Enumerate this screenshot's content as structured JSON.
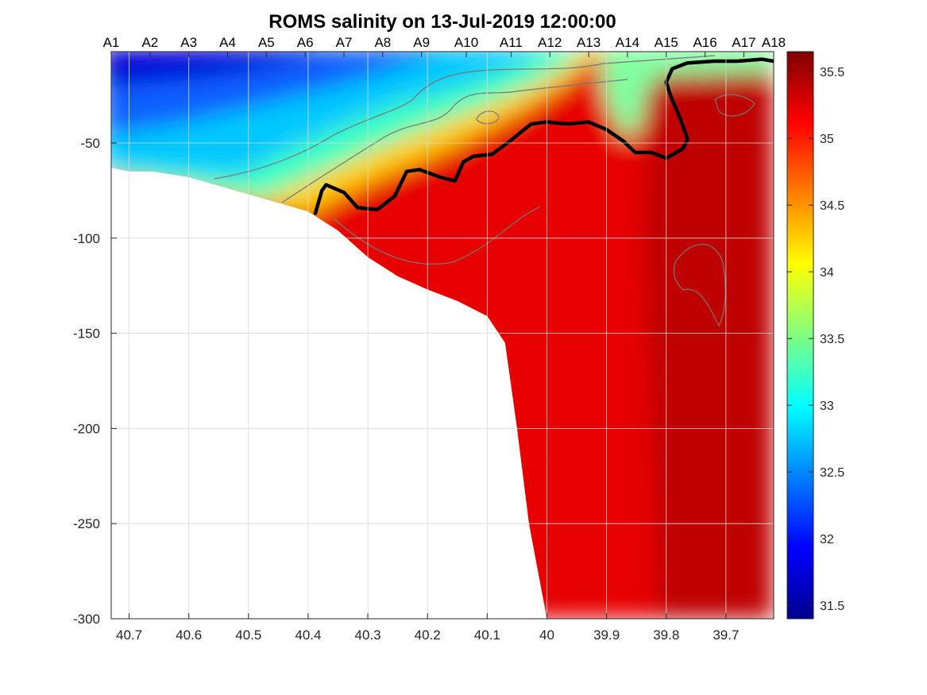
{
  "chart_data": {
    "type": "heatmap",
    "title": "ROMS salinity on 13-Jul-2019 12:00:00",
    "xlabel": "",
    "ylabel": "",
    "x_reversed": true,
    "xlim": [
      40.73,
      39.62
    ],
    "ylim": [
      -300,
      -2
    ],
    "x_ticks": [
      40.7,
      40.6,
      40.5,
      40.4,
      40.3,
      40.2,
      40.1,
      40,
      39.9,
      39.8,
      39.7
    ],
    "x_tick_labels": [
      "40.7",
      "40.6",
      "40.5",
      "40.4",
      "40.3",
      "40.2",
      "40.1",
      "40",
      "39.9",
      "39.8",
      "39.7"
    ],
    "y_ticks": [
      -50,
      -100,
      -150,
      -200,
      -250,
      -300
    ],
    "y_tick_labels": [
      "-50",
      "-100",
      "-150",
      "-200",
      "-250",
      "-300"
    ],
    "grid": true,
    "colormap": "jet",
    "clim": [
      31.4,
      35.65
    ],
    "colorbar_ticks": [
      31.5,
      32,
      32.5,
      33,
      33.5,
      34,
      34.5,
      35,
      35.5
    ],
    "colorbar_tick_labels": [
      "31.5",
      "32",
      "32.5",
      "33",
      "33.5",
      "34",
      "34.5",
      "35",
      "35.5"
    ],
    "stations": [
      {
        "name": "A1",
        "lat": 40.73
      },
      {
        "name": "A2",
        "lat": 40.665
      },
      {
        "name": "A3",
        "lat": 40.6
      },
      {
        "name": "A4",
        "lat": 40.535
      },
      {
        "name": "A5",
        "lat": 40.47
      },
      {
        "name": "A6",
        "lat": 40.405
      },
      {
        "name": "A7",
        "lat": 40.34
      },
      {
        "name": "A8",
        "lat": 40.275
      },
      {
        "name": "A9",
        "lat": 40.21
      },
      {
        "name": "A10",
        "lat": 40.135
      },
      {
        "name": "A11",
        "lat": 40.06
      },
      {
        "name": "A12",
        "lat": 39.995
      },
      {
        "name": "A13",
        "lat": 39.93
      },
      {
        "name": "A14",
        "lat": 39.865
      },
      {
        "name": "A15",
        "lat": 39.8
      },
      {
        "name": "A16",
        "lat": 39.735
      },
      {
        "name": "A17",
        "lat": 39.67
      },
      {
        "name": "A18",
        "lat": 39.62
      }
    ],
    "bathymetry": [
      {
        "lat": 40.73,
        "depth": -63
      },
      {
        "lat": 40.7,
        "depth": -65
      },
      {
        "lat": 40.66,
        "depth": -65
      },
      {
        "lat": 40.6,
        "depth": -68
      },
      {
        "lat": 40.5,
        "depth": -77
      },
      {
        "lat": 40.4,
        "depth": -86
      },
      {
        "lat": 40.35,
        "depth": -96
      },
      {
        "lat": 40.3,
        "depth": -110
      },
      {
        "lat": 40.25,
        "depth": -120
      },
      {
        "lat": 40.2,
        "depth": -127
      },
      {
        "lat": 40.15,
        "depth": -133
      },
      {
        "lat": 40.1,
        "depth": -141
      },
      {
        "lat": 40.07,
        "depth": -155
      },
      {
        "lat": 40.05,
        "depth": -200
      },
      {
        "lat": 40.03,
        "depth": -250
      },
      {
        "lat": 40.0,
        "depth": -300
      }
    ],
    "isohaline_35": {
      "level": 35,
      "lat": [
        40.388,
        40.377,
        40.37,
        40.34,
        40.317,
        40.284,
        40.255,
        40.235,
        40.214,
        40.178,
        40.154,
        40.14,
        40.123,
        40.092,
        40.066,
        40.046,
        40.026,
        40.0,
        39.964,
        39.93,
        39.9,
        39.872,
        39.852,
        39.825,
        39.8,
        39.772,
        39.764,
        39.778,
        39.793,
        39.8,
        39.79,
        39.765,
        39.72,
        39.68,
        39.64,
        39.62
      ],
      "depth": [
        -87,
        -75,
        -72,
        -76,
        -84,
        -85,
        -78,
        -65,
        -64,
        -68,
        -70,
        -60,
        -57,
        -56,
        -50,
        -45,
        -40,
        -39,
        -40,
        -39,
        -43,
        -49,
        -55,
        -55,
        -58,
        -53,
        -48,
        -36,
        -25,
        -18,
        -11,
        -8,
        -7,
        -7,
        -6,
        -7
      ]
    },
    "salinity_fields": {
      "surface_nearshore": 31.5,
      "surface_midshelf": 33.0,
      "shelfbreak_front": 34.2,
      "bottom_shelf": 35.0,
      "slope_core": 35.55
    }
  }
}
